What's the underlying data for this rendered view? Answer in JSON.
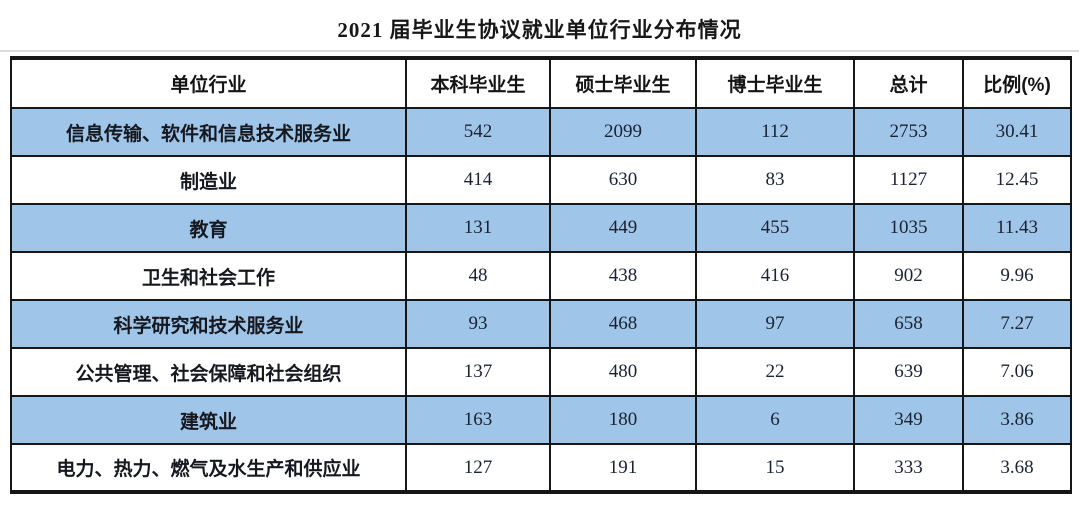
{
  "title": "2021 届毕业生协议就业单位行业分布情况",
  "colors": {
    "row_highlight": "#9fc5e8",
    "border": "#161616",
    "text": "#1a2233"
  },
  "table": {
    "headers": [
      "单位行业",
      "本科毕业生",
      "硕士毕业生",
      "博士毕业生",
      "总计",
      "比例(%)"
    ],
    "rows": [
      [
        "信息传输、软件和信息技术服务业",
        "542",
        "2099",
        "112",
        "2753",
        "30.41"
      ],
      [
        "制造业",
        "414",
        "630",
        "83",
        "1127",
        "12.45"
      ],
      [
        "教育",
        "131",
        "449",
        "455",
        "1035",
        "11.43"
      ],
      [
        "卫生和社会工作",
        "48",
        "438",
        "416",
        "902",
        "9.96"
      ],
      [
        "科学研究和技术服务业",
        "93",
        "468",
        "97",
        "658",
        "7.27"
      ],
      [
        "公共管理、社会保障和社会组织",
        "137",
        "480",
        "22",
        "639",
        "7.06"
      ],
      [
        "建筑业",
        "163",
        "180",
        "6",
        "349",
        "3.86"
      ],
      [
        "电力、热力、燃气及水生产和供应业",
        "127",
        "191",
        "15",
        "333",
        "3.68"
      ]
    ]
  }
}
